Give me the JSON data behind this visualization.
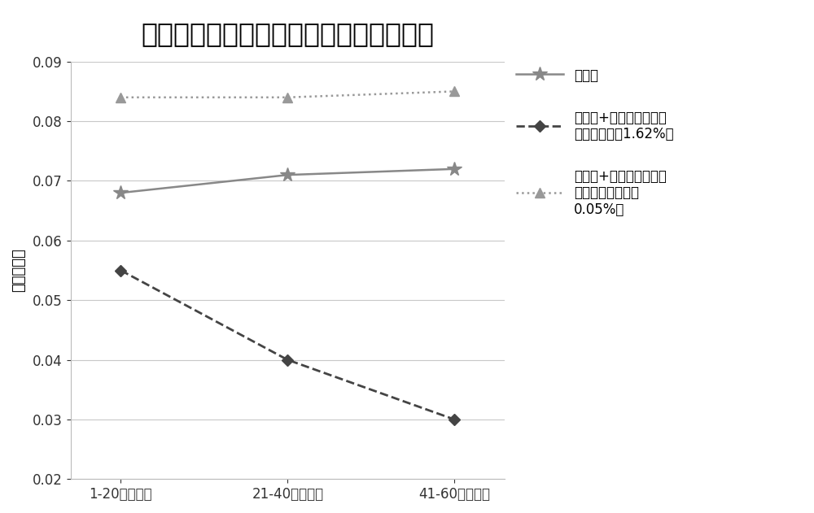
{
  "title": "提取物中不同糖含量对电子烟失重的影响",
  "xlabel_ticks": [
    "1-20口的失重",
    "21-40口的失重",
    "41-60口的失重"
  ],
  "ylabel": "失重（克）",
  "ylim": [
    0.02,
    0.09
  ],
  "yticks": [
    0.02,
    0.03,
    0.04,
    0.05,
    0.06,
    0.07,
    0.08,
    0.09
  ],
  "series": [
    {
      "label": "雾化剂",
      "values": [
        0.068,
        0.071,
        0.072
      ],
      "color": "#888888",
      "linestyle": "-",
      "marker": "*",
      "markersize": 13,
      "linewidth": 1.8
    },
    {
      "label": "提取物+雾化剂（提取物\n带来的糖含量1.62%）",
      "values": [
        0.055,
        0.04,
        0.03
      ],
      "color": "#444444",
      "linestyle": "--",
      "marker": "D",
      "markersize": 7,
      "linewidth": 2.0
    },
    {
      "label": "提取物+雾化剂（提取物\n带来的糖含量降到\n0.05%）",
      "values": [
        0.084,
        0.084,
        0.085
      ],
      "color": "#999999",
      "linestyle": ":",
      "marker": "^",
      "markersize": 9,
      "linewidth": 1.8
    }
  ],
  "title_fontsize": 24,
  "axis_label_fontsize": 13,
  "tick_fontsize": 12,
  "legend_fontsize": 12,
  "background_color": "#ffffff",
  "grid_color": "#c8c8c8"
}
